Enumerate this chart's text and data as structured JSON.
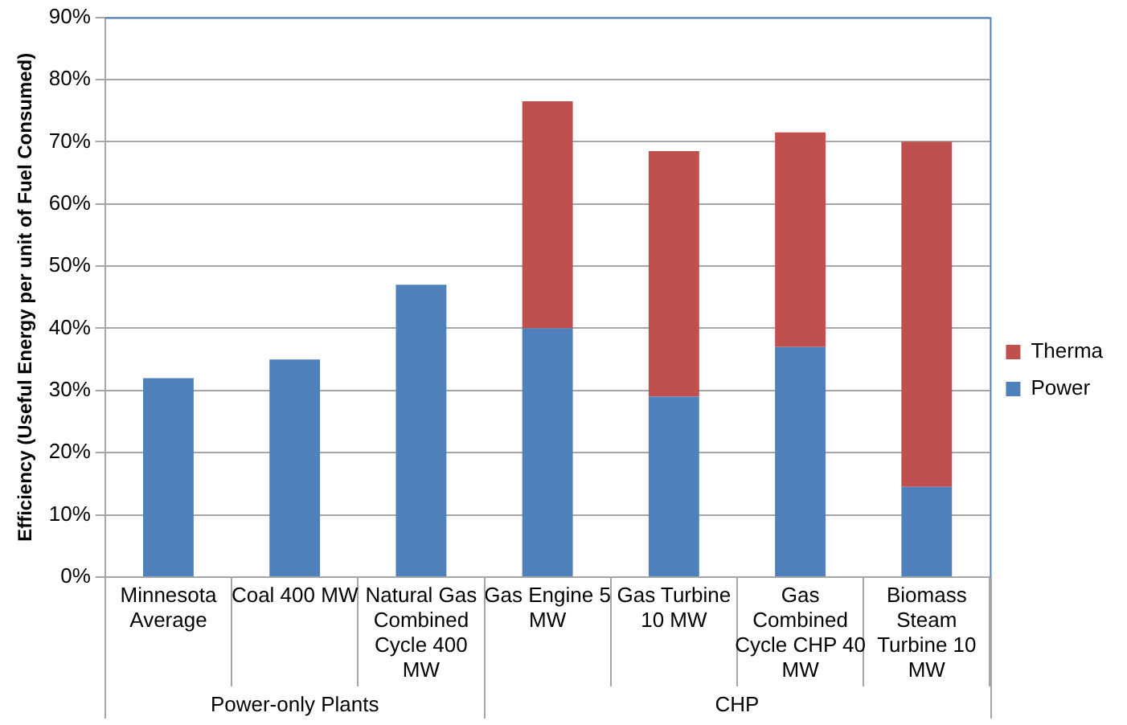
{
  "chart_data": {
    "type": "bar",
    "stacked": true,
    "ylabel": "Efficiency (Useful Energy per unit of Fuel Consumed)",
    "categories": [
      "Minnesota Average",
      "Coal 400 MW",
      "Natural Gas Combined Cycle 400 MW",
      "Gas Engine 5 MW",
      "Gas Turbine 10 MW",
      "Gas Combined Cycle CHP 40 MW",
      "Biomass Steam Turbine 10 MW"
    ],
    "series": [
      {
        "name": "Power",
        "color": "#4f81bd",
        "values": [
          32,
          35,
          47,
          40,
          29,
          37,
          14.5
        ]
      },
      {
        "name": "Therma",
        "color": "#c0504d",
        "values": [
          null,
          null,
          null,
          36.5,
          39.5,
          34.5,
          55.5
        ]
      }
    ],
    "ylim": [
      0,
      90
    ],
    "yticks": [
      {
        "value": 0,
        "label": "0%"
      },
      {
        "value": 10,
        "label": "10%"
      },
      {
        "value": 20,
        "label": "20%"
      },
      {
        "value": 30,
        "label": "30%"
      },
      {
        "value": 40,
        "label": "40%"
      },
      {
        "value": 50,
        "label": "50%"
      },
      {
        "value": 60,
        "label": "60%"
      },
      {
        "value": 70,
        "label": "70%"
      },
      {
        "value": 80,
        "label": "80%"
      },
      {
        "value": 90,
        "label": "90%"
      }
    ],
    "grid": "y",
    "legend": "right",
    "annotations": [
      "Power-only Plants",
      "CHP"
    ]
  }
}
